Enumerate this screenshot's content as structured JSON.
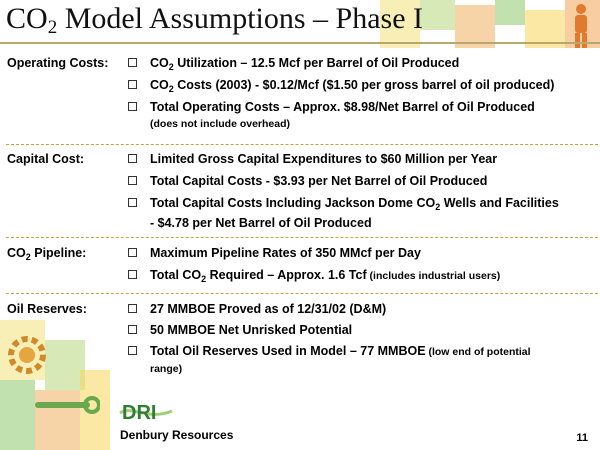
{
  "title": {
    "main": "CO",
    "sub": "2",
    "rest": " Model Assumptions – Phase I"
  },
  "sections": [
    {
      "label_pre": "Operating Costs:",
      "label_sub": "",
      "label_post": "",
      "items": [
        {
          "pre": "CO",
          "sub": "2",
          "post": " Utilization – 12.5 Mcf per Barrel of Oil Produced",
          "small": "",
          "line2": ""
        },
        {
          "pre": "CO",
          "sub": "2",
          "post": " Costs (2003) - $0.12/Mcf ($1.50 per gross barrel of oil produced)",
          "small": "",
          "line2": ""
        },
        {
          "pre": "Total Operating Costs – Approx. $8.98/Net Barrel of Oil Produced",
          "sub": "",
          "post": "",
          "small": "",
          "line2": "(does not include overhead)"
        }
      ]
    },
    {
      "label_pre": "Capital Cost:",
      "label_sub": "",
      "label_post": "",
      "items": [
        {
          "pre": "Limited Gross Capital Expenditures to $60 Million per Year",
          "sub": "",
          "post": "",
          "small": "",
          "line2": ""
        },
        {
          "pre": "Total Capital Costs - $3.93 per Net Barrel of Oil Produced",
          "sub": "",
          "post": "",
          "small": "",
          "line2": ""
        },
        {
          "pre": "Total Capital Costs Including Jackson Dome CO",
          "sub": "2",
          "post": "  Wells and Facilities",
          "small": "",
          "line2": "- $4.78 per Net Barrel of Oil Produced"
        }
      ]
    },
    {
      "label_pre": "CO",
      "label_sub": "2",
      "label_post": " Pipeline:",
      "items": [
        {
          "pre": "Maximum Pipeline Rates of 350 MMcf per Day",
          "sub": "",
          "post": "",
          "small": "",
          "line2": ""
        },
        {
          "pre": "Total CO",
          "sub": "2",
          "post": " Required – Approx. 1.6 Tcf",
          "small": " (includes industrial users)",
          "line2": ""
        }
      ]
    },
    {
      "label_pre": "Oil Reserves:",
      "label_sub": "",
      "label_post": "",
      "items": [
        {
          "pre": "27 MMBOE Proved as of 12/31/02 (D&M)",
          "sub": "",
          "post": "",
          "small": "",
          "line2": ""
        },
        {
          "pre": "50 MMBOE Net Unrisked Potential",
          "sub": "",
          "post": "",
          "small": "",
          "line2": ""
        },
        {
          "pre": "Total Oil Reserves Used in Model – 77 MMBOE",
          "sub": "",
          "post": "",
          "small": " (low end of potential",
          "line2": "range)"
        }
      ]
    }
  ],
  "footer": {
    "logo_text": "DRI",
    "company": "Denbury Resources",
    "page": "11"
  },
  "colors": {
    "rule": "#b7a86b",
    "separator": "#c9a23a",
    "logo_green": "#2f7d32"
  }
}
